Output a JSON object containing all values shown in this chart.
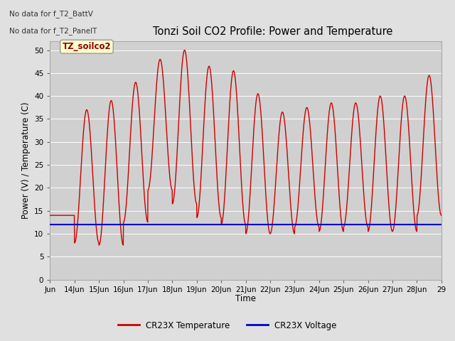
{
  "title": "Tonzi Soil CO2 Profile: Power and Temperature",
  "ylabel": "Power (V) / Temperature (C)",
  "xlabel": "Time",
  "annotation_line1": "No data for f_T2_BattV",
  "annotation_line2": "No data for f_T2_PanelT",
  "box_label": "TZ_soilco2",
  "ylim": [
    0,
    52
  ],
  "yticks": [
    0,
    5,
    10,
    15,
    20,
    25,
    30,
    35,
    40,
    45,
    50
  ],
  "x_tick_labels": [
    "Jun",
    "14Jun",
    "15Jun",
    "16Jun",
    "17Jun",
    "18Jun",
    "19Jun",
    "20Jun",
    "21Jun",
    "22Jun",
    "23Jun",
    "24Jun",
    "25Jun",
    "26Jun",
    "27Jun",
    "28Jun",
    "29"
  ],
  "temp_color": "#cc0000",
  "volt_color": "#0000cc",
  "fig_bg_color": "#e0e0e0",
  "plot_bg_color": "#d0d0d0",
  "legend_temp": "CR23X Temperature",
  "legend_volt": "CR23X Voltage",
  "voltage_value": 12.0,
  "xlim": [
    0,
    16
  ]
}
